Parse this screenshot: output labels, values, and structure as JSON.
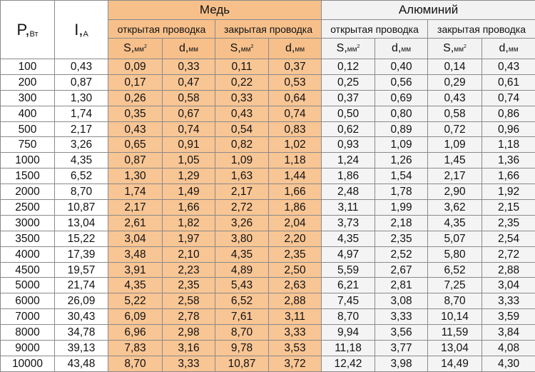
{
  "header": {
    "power_label": "P,",
    "power_unit": "Вт",
    "current_label": "I,",
    "current_unit": "А",
    "copper": "Медь",
    "aluminum": "Алюминий",
    "open_wiring": "открытая проводка",
    "closed_wiring": "закрытая проводка",
    "s_label": "S,",
    "s_unit": "мм",
    "s_sup": "2",
    "d_label": "d,",
    "d_unit": "мм"
  },
  "colors": {
    "copper_bg": "#f8c594",
    "aluminum_bg": "#f4f4f4",
    "border": "#8a8a8a"
  },
  "rows": [
    [
      "100",
      "0,43",
      "0,09",
      "0,33",
      "0,11",
      "0,37",
      "0,12",
      "0,40",
      "0,14",
      "0,43"
    ],
    [
      "200",
      "0,87",
      "0,17",
      "0,47",
      "0,22",
      "0,53",
      "0,25",
      "0,56",
      "0,29",
      "0,61"
    ],
    [
      "300",
      "1,30",
      "0,26",
      "0,58",
      "0,33",
      "0,64",
      "0,37",
      "0,69",
      "0,43",
      "0,74"
    ],
    [
      "400",
      "1,74",
      "0,35",
      "0,67",
      "0,43",
      "0,74",
      "0,50",
      "0,80",
      "0,58",
      "0,86"
    ],
    [
      "500",
      "2,17",
      "0,43",
      "0,74",
      "0,54",
      "0,83",
      "0,62",
      "0,89",
      "0,72",
      "0,96"
    ],
    [
      "750",
      "3,26",
      "0,65",
      "0,91",
      "0,82",
      "1,02",
      "0,93",
      "1,09",
      "1,09",
      "1,18"
    ],
    [
      "1000",
      "4,35",
      "0,87",
      "1,05",
      "1,09",
      "1,18",
      "1,24",
      "1,26",
      "1,45",
      "1,36"
    ],
    [
      "1500",
      "6,52",
      "1,30",
      "1,29",
      "1,63",
      "1,44",
      "1,86",
      "1,54",
      "2,17",
      "1,66"
    ],
    [
      "2000",
      "8,70",
      "1,74",
      "1,49",
      "2,17",
      "1,66",
      "2,48",
      "1,78",
      "2,90",
      "1,92"
    ],
    [
      "2500",
      "10,87",
      "2,17",
      "1,66",
      "2,72",
      "1,86",
      "3,11",
      "1,99",
      "3,62",
      "2,15"
    ],
    [
      "3000",
      "13,04",
      "2,61",
      "1,82",
      "3,26",
      "2,04",
      "3,73",
      "2,18",
      "4,35",
      "2,35"
    ],
    [
      "3500",
      "15,22",
      "3,04",
      "1,97",
      "3,80",
      "2,20",
      "4,35",
      "2,35",
      "5,07",
      "2,54"
    ],
    [
      "4000",
      "17,39",
      "3,48",
      "2,10",
      "4,35",
      "2,35",
      "4,97",
      "2,52",
      "5,80",
      "2,72"
    ],
    [
      "4500",
      "19,57",
      "3,91",
      "2,23",
      "4,89",
      "2,50",
      "5,59",
      "2,67",
      "6,52",
      "2,88"
    ],
    [
      "5000",
      "21,74",
      "4,35",
      "2,35",
      "5,43",
      "2,63",
      "6,21",
      "2,81",
      "7,25",
      "3,04"
    ],
    [
      "6000",
      "26,09",
      "5,22",
      "2,58",
      "6,52",
      "2,88",
      "7,45",
      "3,08",
      "8,70",
      "3,33"
    ],
    [
      "7000",
      "30,43",
      "6,09",
      "2,78",
      "7,61",
      "3,11",
      "8,70",
      "3,33",
      "10,14",
      "3,59"
    ],
    [
      "8000",
      "34,78",
      "6,96",
      "2,98",
      "8,70",
      "3,33",
      "9,94",
      "3,56",
      "11,59",
      "3,84"
    ],
    [
      "9000",
      "39,13",
      "7,83",
      "3,16",
      "9,78",
      "3,53",
      "11,18",
      "3,77",
      "13,04",
      "4,08"
    ],
    [
      "10000",
      "43,48",
      "8,70",
      "3,33",
      "10,87",
      "3,72",
      "12,42",
      "3,98",
      "14,49",
      "4,30"
    ]
  ]
}
